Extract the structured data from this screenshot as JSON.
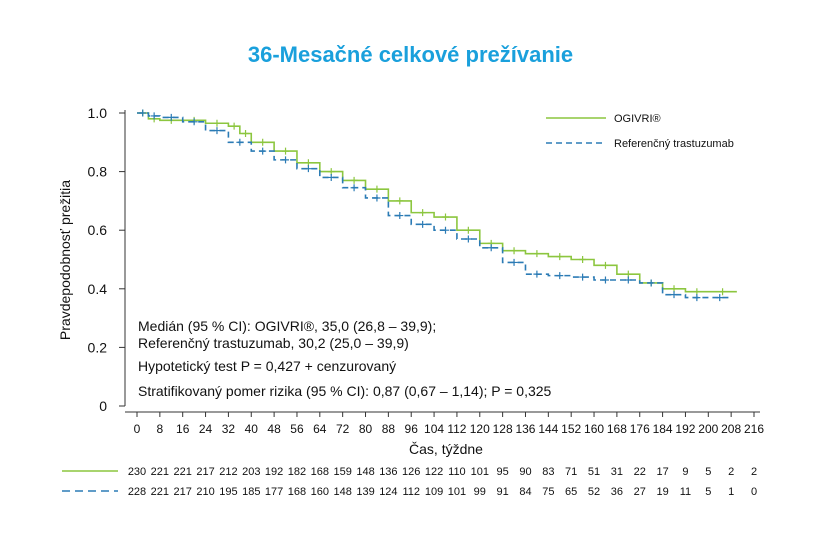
{
  "colors": {
    "ogivri": "#8cc63f",
    "reference": "#2b7bb5",
    "title": "#1aa0dc"
  },
  "chart_data": {
    "type": "line",
    "title": "36-Mesačné celkové prežívanie",
    "xlabel": "Čas, týždne",
    "ylabel": "Pravdepodobnosť prežitia",
    "xlim": [
      0,
      216
    ],
    "ylim": [
      0,
      1.0
    ],
    "x_ticks": [
      0,
      8,
      16,
      24,
      32,
      40,
      48,
      56,
      64,
      72,
      80,
      88,
      96,
      104,
      112,
      120,
      128,
      136,
      144,
      152,
      160,
      168,
      176,
      184,
      192,
      200,
      208,
      216
    ],
    "y_ticks": [
      0,
      0.2,
      0.4,
      0.6,
      0.8,
      1.0
    ],
    "y_tick_labels": [
      "0",
      "0.2",
      "0.4",
      "0.6",
      "0.8",
      "1.0"
    ],
    "legend_position": "top-right",
    "series": [
      {
        "name": "OGIVRI®",
        "style": "solid",
        "x": [
          0,
          4,
          8,
          16,
          24,
          32,
          36,
          40,
          48,
          56,
          64,
          72,
          80,
          88,
          96,
          104,
          112,
          120,
          128,
          136,
          144,
          152,
          160,
          168,
          176,
          184,
          192,
          200,
          210
        ],
        "y": [
          1.0,
          0.98,
          0.975,
          0.975,
          0.965,
          0.955,
          0.93,
          0.9,
          0.87,
          0.83,
          0.8,
          0.77,
          0.74,
          0.7,
          0.66,
          0.645,
          0.6,
          0.555,
          0.53,
          0.52,
          0.51,
          0.5,
          0.48,
          0.45,
          0.42,
          0.4,
          0.39,
          0.39,
          0.39
        ]
      },
      {
        "name": "Referenčný trastuzumab",
        "style": "dashed",
        "x": [
          0,
          4,
          8,
          16,
          24,
          32,
          40,
          48,
          56,
          64,
          72,
          80,
          88,
          96,
          104,
          112,
          120,
          128,
          136,
          144,
          152,
          160,
          168,
          176,
          184,
          192,
          200,
          208
        ],
        "y": [
          1.0,
          0.99,
          0.985,
          0.97,
          0.94,
          0.9,
          0.87,
          0.84,
          0.81,
          0.78,
          0.745,
          0.71,
          0.65,
          0.62,
          0.6,
          0.57,
          0.54,
          0.49,
          0.45,
          0.445,
          0.44,
          0.43,
          0.43,
          0.42,
          0.38,
          0.37,
          0.37,
          0.37
        ]
      }
    ],
    "annotations": [
      "Medián (95 % CI): OGIVRI®, 35,0 (26,8 – 39,9);",
      "Referenčný trastuzumab, 30,2 (25,0 – 39,9)",
      "Hypotetický test P = 0,427 + cenzurovaný",
      "Stratifikovaný pomer rizika (95 % CI): 0,87 (0,67 – 1,14); P = 0,325"
    ],
    "at_risk": {
      "OGIVRI®": [
        "230",
        "221",
        "221",
        "217",
        "212",
        "203",
        "192",
        "182",
        "168",
        "159",
        "148",
        "136",
        "126",
        "122",
        "110",
        "101",
        "95",
        "90",
        "83",
        "71",
        "51",
        "31",
        "22",
        "17",
        "9",
        "5",
        "2",
        "2"
      ],
      "Referenčný trastuzumab": [
        "228",
        "221",
        "217",
        "210",
        "195",
        "185",
        "177",
        "168",
        "160",
        "148",
        "139",
        "124",
        "112",
        "109",
        "101",
        "99",
        "91",
        "84",
        "75",
        "65",
        "52",
        "36",
        "27",
        "19",
        "11",
        "5",
        "1",
        "0"
      ]
    }
  }
}
